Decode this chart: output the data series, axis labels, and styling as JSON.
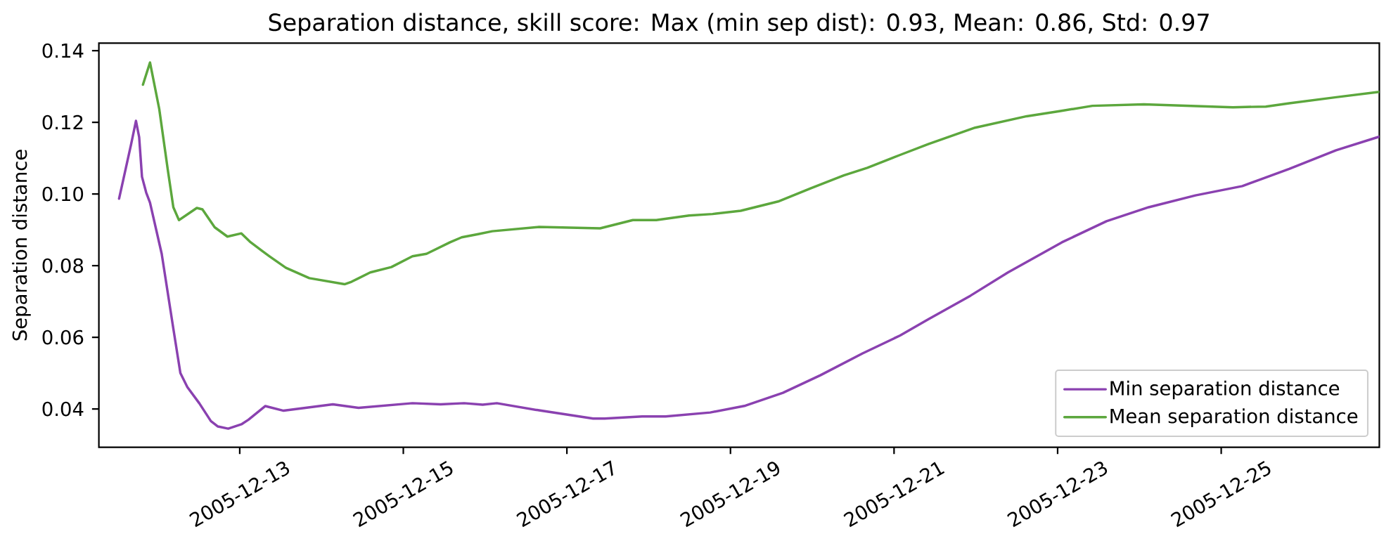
{
  "chart_data": {
    "type": "line",
    "title": "Separation distance, skill score: Max (min sep dist): 0.93, Mean: 0.86, Std: 0.97",
    "ylabel": "Separation distance",
    "xlim": [
      "2005-12-11T06:40",
      "2005-12-26T22:24"
    ],
    "xticks": [
      "2005-12-13",
      "2005-12-15",
      "2005-12-17",
      "2005-12-19",
      "2005-12-21",
      "2005-12-23",
      "2005-12-25"
    ],
    "ylim": [
      0.0293,
      0.1421
    ],
    "yticks": [
      0.04,
      0.06,
      0.08,
      {
        "value": 0.1,
        "label": "0.10"
      },
      0.12,
      0.14
    ],
    "legend": "bottom right",
    "series": [
      {
        "name": "Min separation distance",
        "color": "#8a41b0",
        "x": [
          "2005-12-11T12:36",
          "2005-12-11T16:08",
          "2005-12-11T17:33",
          "2005-12-11T18:29",
          "2005-12-11T19:19",
          "2005-12-11T20:33",
          "2005-12-11T21:40",
          "2005-12-12T01:06",
          "2005-12-12T04:31",
          "2005-12-12T06:35",
          "2005-12-12T08:38",
          "2005-12-12T12:07",
          "2005-12-12T15:32",
          "2005-12-12T17:36",
          "2005-12-12T20:37",
          "2005-12-13T00:29",
          "2005-12-13T02:34",
          "2005-12-13T07:31",
          "2005-12-13T12:52",
          "2005-12-14T03:19",
          "2005-12-14T10:52",
          "2005-12-15T02:41",
          "2005-12-15T10:57",
          "2005-12-15T17:50",
          "2005-12-15T23:17",
          "2005-12-16T03:27",
          "2005-12-16T15:50",
          "2005-12-17T07:41",
          "2005-12-17T11:05",
          "2005-12-17T22:05",
          "2005-12-18T04:58",
          "2005-12-18T18:03",
          "2005-12-19T04:22",
          "2005-12-19T15:23",
          "2005-12-20T02:23",
          "2005-12-20T14:46",
          "2005-12-21T01:47",
          "2005-12-21T10:02",
          "2005-12-21T22:25",
          "2005-12-22T09:26",
          "2005-12-23T01:15",
          "2005-12-23T14:20",
          "2005-12-24T02:43",
          "2005-12-24T16:26",
          "2005-12-25T06:12",
          "2005-12-25T19:58",
          "2005-12-26T09:43",
          "2005-12-26T22:24"
        ],
        "values": [
          0.0987,
          0.1139,
          0.1204,
          0.1159,
          0.1048,
          0.1004,
          0.0976,
          0.0833,
          0.0624,
          0.05,
          0.0461,
          0.0416,
          0.0366,
          0.0351,
          0.0345,
          0.0357,
          0.037,
          0.0408,
          0.0395,
          0.0413,
          0.0403,
          0.0416,
          0.0413,
          0.0416,
          0.0412,
          0.0416,
          0.0396,
          0.0373,
          0.0373,
          0.0379,
          0.0379,
          0.039,
          0.0409,
          0.0445,
          0.0494,
          0.0555,
          0.0605,
          0.065,
          0.0716,
          0.0781,
          0.0865,
          0.0924,
          0.0963,
          0.0996,
          0.1022,
          0.107,
          0.1122,
          0.116
        ]
      },
      {
        "name": "Mean separation distance",
        "color": "#5ca73d",
        "x": [
          "2005-12-11T19:36",
          "2005-12-11T21:40",
          "2005-12-12T00:23",
          "2005-12-12T02:53",
          "2005-12-12T04:31",
          "2005-12-12T06:10",
          "2005-12-12T11:24",
          "2005-12-12T13:03",
          "2005-12-12T16:39",
          "2005-12-12T20:23",
          "2005-12-13T00:29",
          "2005-12-13T03:13",
          "2005-12-13T06:42",
          "2005-12-13T08:44",
          "2005-12-13T13:32",
          "2005-12-13T20:25",
          "2005-12-14T06:45",
          "2005-12-14T08:48",
          "2005-12-14T14:18",
          "2005-12-14T20:30",
          "2005-12-15T02:41",
          "2005-12-15T06:49",
          "2005-12-15T13:42",
          "2005-12-15T17:08",
          "2005-12-15T21:58",
          "2005-12-16T02:05",
          "2005-12-16T15:50",
          "2005-12-17T09:45",
          "2005-12-17T19:21",
          "2005-12-18T02:14",
          "2005-12-18T11:51",
          "2005-12-18T18:45",
          "2005-12-19T03:01",
          "2005-12-19T13:59",
          "2005-12-19T23:38",
          "2005-12-20T09:16",
          "2005-12-20T16:09",
          "2005-12-21T01:47",
          "2005-12-21T10:02",
          "2005-12-21T23:47",
          "2005-12-22T14:56",
          "2005-12-23T00:32",
          "2005-12-23T10:12",
          "2005-12-24T01:18",
          "2005-12-25T03:27",
          "2005-12-25T13:05",
          "2005-12-25T19:58",
          "2005-12-26T09:43",
          "2005-12-26T22:24"
        ],
        "values": [
          0.1305,
          0.1367,
          0.1237,
          0.1068,
          0.0963,
          0.0927,
          0.0961,
          0.0957,
          0.0907,
          0.0881,
          0.089,
          0.0865,
          0.084,
          0.0826,
          0.0794,
          0.0765,
          0.0748,
          0.0755,
          0.0781,
          0.0796,
          0.0826,
          0.0833,
          0.0865,
          0.0879,
          0.0888,
          0.0896,
          0.0908,
          0.0904,
          0.0927,
          0.0927,
          0.094,
          0.0944,
          0.0953,
          0.0979,
          0.1016,
          0.1052,
          0.1073,
          0.1109,
          0.1139,
          0.1185,
          0.1217,
          0.1231,
          0.1246,
          0.125,
          0.1242,
          0.1244,
          0.1253,
          0.127,
          0.1285
        ]
      }
    ]
  }
}
